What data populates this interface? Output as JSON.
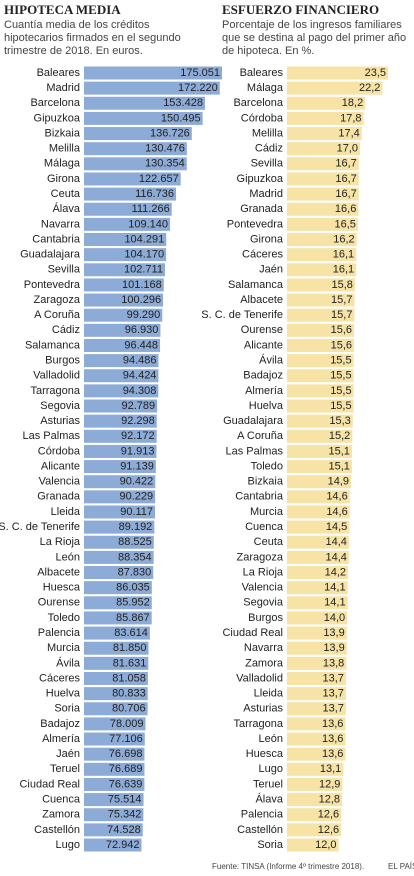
{
  "chart_data": [
    {
      "type": "bar",
      "orientation": "horizontal",
      "title": "HIPOTECA MEDIA",
      "subtitle": "Cuantía media de los créditos hipotecarios firmados en el segundo trimestre de 2018. En euros.",
      "color": "#8dabd7",
      "categories": [
        "Baleares",
        "Madrid",
        "Barcelona",
        "Gipuzkoa",
        "Bizkaia",
        "Melilla",
        "Málaga",
        "Girona",
        "Ceuta",
        "Álava",
        "Navarra",
        "Cantabria",
        "Guadalajara",
        "Sevilla",
        "Pontevedra",
        "Zaragoza",
        "A Coruña",
        "Cádiz",
        "Salamanca",
        "Burgos",
        "Valladolid",
        "Tarragona",
        "Segovia",
        "Asturias",
        "Las Palmas",
        "Córdoba",
        "Alicante",
        "Valencia",
        "Granada",
        "Lleida",
        "S. C. de Tenerife",
        "La Rioja",
        "León",
        "Albacete",
        "Huesca",
        "Ourense",
        "Toledo",
        "Palencia",
        "Murcia",
        "Ávila",
        "Cáceres",
        "Huelva",
        "Soria",
        "Badajoz",
        "Almería",
        "Jaén",
        "Teruel",
        "Ciudad Real",
        "Cuenca",
        "Zamora",
        "Castellón",
        "Lugo"
      ],
      "values": [
        175051,
        172220,
        153428,
        150495,
        136726,
        130476,
        130354,
        122657,
        116736,
        111266,
        109140,
        104291,
        104170,
        102711,
        101168,
        100296,
        99290,
        96930,
        96448,
        94486,
        94424,
        94308,
        92789,
        92298,
        92172,
        91913,
        91139,
        90422,
        90229,
        90117,
        89192,
        88525,
        88354,
        87830,
        86035,
        85952,
        85867,
        83614,
        81850,
        81631,
        81058,
        80833,
        80706,
        78009,
        77106,
        76698,
        76689,
        76639,
        75514,
        75342,
        74528,
        72942
      ],
      "value_labels": [
        "175.051",
        "172.220",
        "153.428",
        "150.495",
        "136.726",
        "130.476",
        "130.354",
        "122.657",
        "116.736",
        "111.266",
        "109.140",
        "104.291",
        "104.170",
        "102.711",
        "101.168",
        "100.296",
        "99.290",
        "96.930",
        "96.448",
        "94.486",
        "94.424",
        "94.308",
        "92.789",
        "92.298",
        "92.172",
        "91.913",
        "91.139",
        "90.422",
        "90.229",
        "90.117",
        "89.192",
        "88.525",
        "88.354",
        "87.830",
        "86.035",
        "85.952",
        "85.867",
        "83.614",
        "81.850",
        "81.631",
        "81.058",
        "80.833",
        "80.706",
        "78.009",
        "77.106",
        "76.698",
        "76.689",
        "76.639",
        "75.514",
        "75.342",
        "74.528",
        "72.942"
      ]
    },
    {
      "type": "bar",
      "orientation": "horizontal",
      "title": "ESFUERZO FINANCIERO",
      "subtitle": "Porcentaje de los ingresos familiares que se destina al pago del primer año de hipoteca. En %.",
      "color": "#f6e3a5",
      "categories": [
        "Baleares",
        "Málaga",
        "Barcelona",
        "Córdoba",
        "Melilla",
        "Cádiz",
        "Sevilla",
        "Gipuzkoa",
        "Madrid",
        "Granada",
        "Pontevedra",
        "Girona",
        "Cáceres",
        "Jaén",
        "Salamanca",
        "Albacete",
        "S. C. de Tenerife",
        "Ourense",
        "Alicante",
        "Ávila",
        "Badajoz",
        "Almería",
        "Huelva",
        "Guadalajara",
        "A Coruña",
        "Las Palmas",
        "Toledo",
        "Bizkaia",
        "Cantabria",
        "Murcia",
        "Cuenca",
        "Ceuta",
        "Zaragoza",
        "La Rioja",
        "Valencia",
        "Segovia",
        "Burgos",
        "Ciudad Real",
        "Navarra",
        "Zamora",
        "Valladolid",
        "Lleida",
        "Asturias",
        "Tarragona",
        "León",
        "Huesca",
        "Lugo",
        "Teruel",
        "Álava",
        "Palencia",
        "Castellón",
        "Soria"
      ],
      "values": [
        23.5,
        22.2,
        18.2,
        17.8,
        17.4,
        17.0,
        16.7,
        16.7,
        16.7,
        16.6,
        16.5,
        16.2,
        16.1,
        16.1,
        15.8,
        15.7,
        15.7,
        15.6,
        15.6,
        15.5,
        15.5,
        15.5,
        15.5,
        15.3,
        15.2,
        15.1,
        15.1,
        14.9,
        14.6,
        14.6,
        14.5,
        14.4,
        14.4,
        14.2,
        14.1,
        14.1,
        14.0,
        13.9,
        13.9,
        13.8,
        13.7,
        13.7,
        13.7,
        13.6,
        13.6,
        13.6,
        13.1,
        12.9,
        12.8,
        12.6,
        12.6,
        12.0
      ],
      "value_labels": [
        "23,5",
        "22,2",
        "18,2",
        "17,8",
        "17,4",
        "17,0",
        "16,7",
        "16,7",
        "16,7",
        "16,6",
        "16,5",
        "16,2",
        "16,1",
        "16,1",
        "15,8",
        "15,7",
        "15,7",
        "15,6",
        "15,6",
        "15,5",
        "15,5",
        "15,5",
        "15,5",
        "15,3",
        "15,2",
        "15,1",
        "15,1",
        "14,9",
        "14,6",
        "14,6",
        "14,5",
        "14,4",
        "14,4",
        "14,2",
        "14,1",
        "14,1",
        "14,0",
        "13,9",
        "13,9",
        "13,8",
        "13,7",
        "13,7",
        "13,7",
        "13,6",
        "13,6",
        "13,6",
        "13,1",
        "12,9",
        "12,8",
        "12,6",
        "12,6",
        "12,0"
      ]
    }
  ],
  "source": "Fuente: TINSA (Informe 4º trimestre 2018).",
  "brand": "EL PAÍS"
}
